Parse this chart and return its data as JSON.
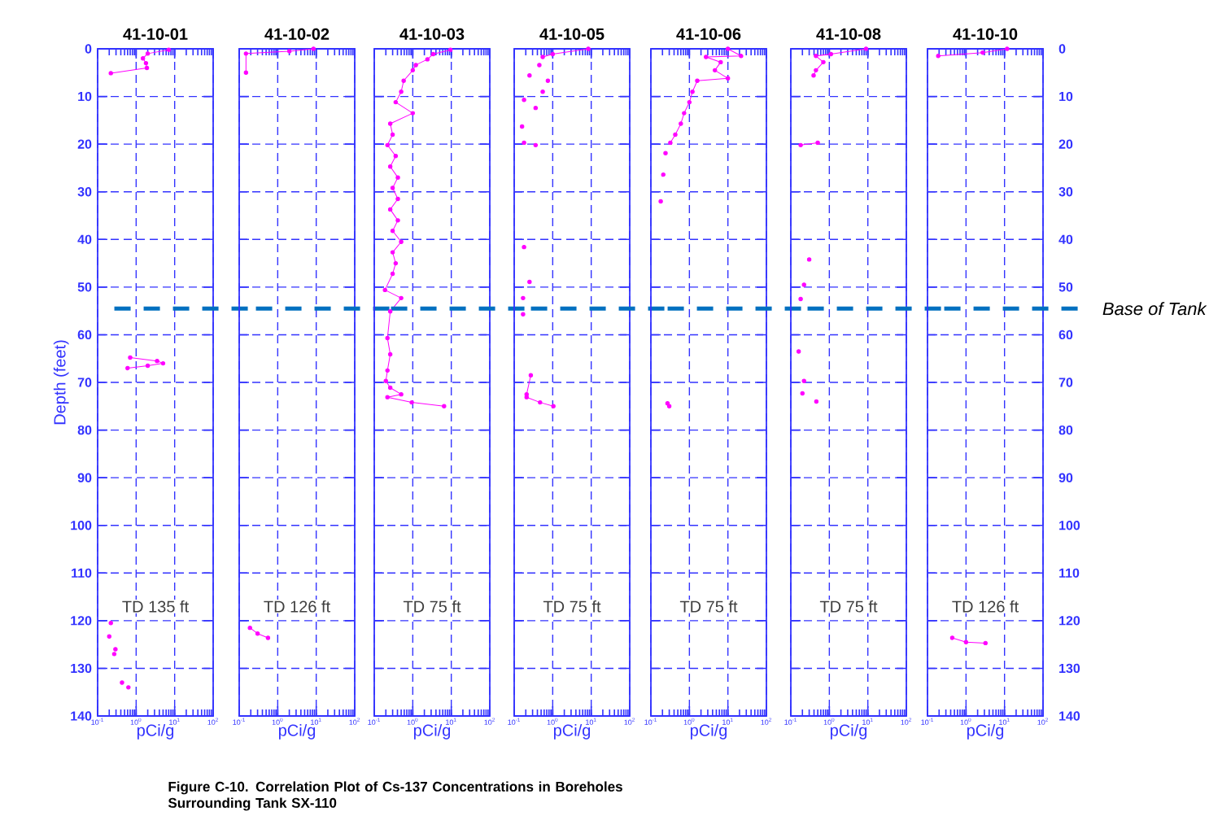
{
  "chart_data": [
    {
      "type": "line",
      "title": "41-10-01",
      "xlabel": "pCi/g",
      "ylabel": "Depth  (feet)",
      "log": "x",
      "grid": true,
      "marker": "circle",
      "line_style": "solid",
      "xlim": [
        0.1,
        100
      ],
      "ylim": [
        140,
        0
      ],
      "xticks": [
        {
          "value": 0.1,
          "label": "10$^{-1}$"
        },
        {
          "value": 1,
          "label": "10$^{0}$"
        },
        {
          "value": 10,
          "label": "10$^{1}$"
        },
        {
          "value": 100,
          "label": "10$^{2}$"
        }
      ],
      "yticks": [
        0,
        10,
        20,
        30,
        40,
        50,
        60,
        70,
        80,
        90,
        100,
        110,
        120,
        130,
        140
      ],
      "series": [
        {
          "color": "#ff00ff",
          "x": [
            7,
            2,
            1.5,
            1.8,
            1.9,
            0.22
          ],
          "values": [
            0.2,
            1,
            2,
            3,
            4,
            5.1
          ]
        },
        {
          "color": "#ff00ff",
          "x": [
            0.7,
            3.5,
            5,
            2,
            0.6
          ],
          "values": [
            64.8,
            65.5,
            66,
            66.5,
            67
          ]
        },
        {
          "type": "scatter",
          "color": "#ff00ff",
          "x": [
            0.22,
            0.2,
            0.29,
            0.27,
            0.43,
            0.63
          ],
          "values": [
            120.5,
            123.3,
            126,
            127,
            133,
            134
          ]
        }
      ],
      "ref_lines": [
        {
          "axis": "y",
          "value": 54.5,
          "label": null,
          "color": "#0070c0",
          "line_style": "dashed"
        }
      ],
      "annotations": [
        "TD 135 ft",
        "Figure C-10.  Correlation Plot of Cs-137 Concentrations in Boreholes Surrounding Tank SX-110"
      ]
    },
    {
      "type": "line",
      "title": "41-10-02",
      "xlabel": "pCi/g",
      "log": "x",
      "grid": true,
      "marker": "circle",
      "line_style": "solid",
      "tick_labels": "x",
      "xlim": [
        0.1,
        100
      ],
      "ylim": [
        140,
        0
      ],
      "xticks": [
        {
          "value": 0.1,
          "label": "10$^{-1}$"
        },
        {
          "value": 1,
          "label": "10$^{0}$"
        },
        {
          "value": 10,
          "label": "10$^{1}$"
        },
        {
          "value": 100,
          "label": "10$^{2}$"
        }
      ],
      "yticks": [
        0,
        10,
        20,
        30,
        40,
        50,
        60,
        70,
        80,
        90,
        100,
        110,
        120,
        130,
        140
      ],
      "series": [
        {
          "color": "#ff00ff",
          "x": [
            8.5,
            2,
            0.15,
            0.15
          ],
          "values": [
            0,
            0.5,
            1,
            5
          ]
        },
        {
          "color": "#ff00ff",
          "x": [
            0.19,
            0.3,
            0.56
          ],
          "values": [
            121.5,
            122.7,
            123.6
          ]
        }
      ],
      "ref_lines": [
        {
          "axis": "y",
          "value": 54.5,
          "label": null,
          "color": "#0070c0",
          "line_style": "dashed"
        }
      ],
      "annotations": [
        "TD 126 ft"
      ]
    },
    {
      "type": "line",
      "title": "41-10-03",
      "xlabel": "pCi/g",
      "log": "x",
      "grid": true,
      "marker": "circle",
      "line_style": "solid",
      "tick_labels": "x",
      "xlim": [
        0.1,
        100
      ],
      "ylim": [
        140,
        0
      ],
      "xticks": [
        {
          "value": 0.1,
          "label": "10$^{-1}$"
        },
        {
          "value": 1,
          "label": "10$^{0}$"
        },
        {
          "value": 10,
          "label": "10$^{1}$"
        },
        {
          "value": 100,
          "label": "10$^{2}$"
        }
      ],
      "yticks": [
        0,
        10,
        20,
        30,
        40,
        50,
        60,
        70,
        80,
        90,
        100,
        110,
        120,
        130,
        140
      ],
      "series": [
        {
          "color": "#ff00ff",
          "x": [
            9.5,
            3.4,
            2.4,
            1.2,
            1.0,
            0.58,
            0.5,
            0.36,
            1.0,
            0.26,
            0.3,
            0.22,
            0.36,
            0.26,
            0.41,
            0.3,
            0.41,
            0.26,
            0.41,
            0.3,
            0.5,
            0.3,
            0.36,
            0.3,
            0.19,
            0.5,
            0.26,
            0.22,
            0.26,
            0.22,
            0.2,
            0.26,
            0.5,
            0.22,
            0.94,
            6.5
          ],
          "values": [
            0.2,
            1.1,
            2.2,
            3.4,
            4.5,
            6.7,
            9,
            11.2,
            13.5,
            15.7,
            18,
            20.2,
            22.5,
            24.7,
            27,
            29.2,
            31.5,
            33.7,
            36,
            38.2,
            40.5,
            42.7,
            45,
            47.2,
            50.6,
            52.3,
            55.1,
            60.7,
            64.1,
            67.5,
            69.7,
            71.1,
            72.5,
            73.1,
            74.2,
            75
          ]
        }
      ],
      "ref_lines": [
        {
          "axis": "y",
          "value": 54.5,
          "label": null,
          "color": "#0070c0",
          "line_style": "dashed"
        }
      ],
      "annotations": [
        "TD 75 ft"
      ]
    },
    {
      "type": "line",
      "title": "41-10-05",
      "xlabel": "pCi/g",
      "log": "x",
      "grid": true,
      "marker": "circle",
      "line_style": "solid",
      "tick_labels": "x",
      "xlim": [
        0.1,
        100
      ],
      "ylim": [
        140,
        0
      ],
      "xticks": [
        {
          "value": 0.1,
          "label": "10$^{-1}$"
        },
        {
          "value": 1,
          "label": "10$^{0}$"
        },
        {
          "value": 10,
          "label": "10$^{1}$"
        },
        {
          "value": 100,
          "label": "10$^{2}$"
        }
      ],
      "yticks": [
        0,
        10,
        20,
        30,
        40,
        50,
        60,
        70,
        80,
        90,
        100,
        110,
        120,
        130,
        140
      ],
      "series": [
        {
          "color": "#ff00ff",
          "x": [
            8.4,
            1.0,
            0.55
          ],
          "values": [
            0,
            1.1,
            1.7
          ]
        },
        {
          "type": "scatter",
          "color": "#ff00ff",
          "x": [
            0.45,
            0.25,
            0.75,
            0.55,
            0.18,
            0.36,
            0.16,
            0.18,
            0.36,
            0.18,
            0.25,
            0.17,
            0.17
          ],
          "values": [
            3.4,
            5.6,
            6.7,
            9,
            10.7,
            12.4,
            16.3,
            19.7,
            20.2,
            41.6,
            48.9,
            52.3,
            55.7
          ]
        },
        {
          "color": "#ff00ff",
          "x": [
            0.27,
            0.21,
            0.21,
            0.47,
            1.04
          ],
          "values": [
            68.5,
            72.5,
            73.1,
            74.2,
            75
          ]
        }
      ],
      "ref_lines": [
        {
          "axis": "y",
          "value": 54.5,
          "label": null,
          "color": "#0070c0",
          "line_style": "dashed"
        }
      ],
      "annotations": [
        "TD 75 ft"
      ]
    },
    {
      "type": "line",
      "title": "41-10-06",
      "xlabel": "pCi/g",
      "log": "x",
      "grid": true,
      "marker": "circle",
      "line_style": "solid",
      "tick_labels": "x",
      "xlim": [
        0.1,
        100
      ],
      "ylim": [
        140,
        0
      ],
      "xticks": [
        {
          "value": 0.1,
          "label": "10$^{-1}$"
        },
        {
          "value": 1,
          "label": "10$^{0}$"
        },
        {
          "value": 10,
          "label": "10$^{1}$"
        },
        {
          "value": 100,
          "label": "10$^{2}$"
        }
      ],
      "yticks": [
        0,
        10,
        20,
        30,
        40,
        50,
        60,
        70,
        80,
        90,
        100,
        110,
        120,
        130,
        140
      ],
      "series": [
        {
          "color": "#ff00ff",
          "x": [
            10,
            22,
            2.7,
            6.5,
            4.6,
            10,
            1.6,
            1.2,
            1.0,
            0.73,
            0.6,
            0.43,
            0.32
          ],
          "values": [
            0,
            1.5,
            1.7,
            2.8,
            4.5,
            6.2,
            6.7,
            9,
            11.2,
            13.5,
            15.7,
            18,
            19.7
          ]
        },
        {
          "type": "scatter",
          "color": "#ff00ff",
          "x": [
            0.24,
            0.21,
            0.18,
            0.27,
            0.3
          ],
          "values": [
            21.9,
            26.4,
            32,
            74.4,
            75
          ]
        }
      ],
      "ref_lines": [
        {
          "axis": "y",
          "value": 54.5,
          "label": null,
          "color": "#0070c0",
          "line_style": "dashed"
        }
      ],
      "annotations": [
        "TD 75 ft"
      ]
    },
    {
      "type": "line",
      "title": "41-10-08",
      "xlabel": "pCi/g",
      "log": "x",
      "grid": true,
      "marker": "circle",
      "line_style": "solid",
      "tick_labels": "x",
      "xlim": [
        0.1,
        100
      ],
      "ylim": [
        140,
        0
      ],
      "xticks": [
        {
          "value": 0.1,
          "label": "10$^{-1}$"
        },
        {
          "value": 1,
          "label": "10$^{0}$"
        },
        {
          "value": 10,
          "label": "10$^{1}$"
        },
        {
          "value": 100,
          "label": "10$^{2}$"
        }
      ],
      "yticks": [
        0,
        10,
        20,
        30,
        40,
        50,
        60,
        70,
        80,
        90,
        100,
        110,
        120,
        130,
        140
      ],
      "series": [
        {
          "color": "#ff00ff",
          "x": [
            9,
            1.1,
            0.45,
            0.7,
            0.45,
            0.39
          ],
          "values": [
            0,
            1.1,
            1.5,
            2.8,
            4.5,
            5.6
          ]
        },
        {
          "color": "#ff00ff",
          "x": [
            0.5,
            0.18
          ],
          "values": [
            19.7,
            20.2
          ]
        },
        {
          "type": "scatter",
          "color": "#ff00ff",
          "x": [
            0.3,
            0.22,
            0.18,
            0.16,
            0.22,
            0.2,
            0.46
          ],
          "values": [
            44.2,
            49.5,
            52.5,
            63.5,
            69.7,
            72.3,
            74
          ]
        }
      ],
      "ref_lines": [
        {
          "axis": "y",
          "value": 54.5,
          "label": null,
          "color": "#0070c0",
          "line_style": "dashed"
        }
      ],
      "annotations": [
        "TD 75 ft"
      ]
    },
    {
      "type": "line",
      "title": "41-10-10",
      "xlabel": "pCi/g",
      "log": "x",
      "grid": true,
      "marker": "circle",
      "line_style": "solid",
      "xlim": [
        0.1,
        100
      ],
      "ylim": [
        140,
        0
      ],
      "xticks": [
        {
          "value": 0.1,
          "label": "10$^{-1}$"
        },
        {
          "value": 1,
          "label": "10$^{0}$"
        },
        {
          "value": 10,
          "label": "10$^{1}$"
        },
        {
          "value": 100,
          "label": "10$^{2}$"
        }
      ],
      "yticks": [
        0,
        10,
        20,
        30,
        40,
        50,
        60,
        70,
        80,
        90,
        100,
        110,
        120,
        130,
        140
      ],
      "series": [
        {
          "color": "#ff00ff",
          "x": [
            11.7,
            2.7,
            0.19
          ],
          "values": [
            0,
            0.8,
            1.5
          ]
        },
        {
          "color": "#ff00ff",
          "x": [
            0.44,
            1.0,
            3.2
          ],
          "values": [
            123.6,
            124.5,
            124.7
          ]
        }
      ],
      "ref_lines": [
        {
          "axis": "y",
          "value": 54.5,
          "label": "Base of Tank",
          "color": "#0070c0",
          "line_style": "dashed"
        }
      ],
      "annotations": [
        "TD 126 ft"
      ]
    }
  ]
}
